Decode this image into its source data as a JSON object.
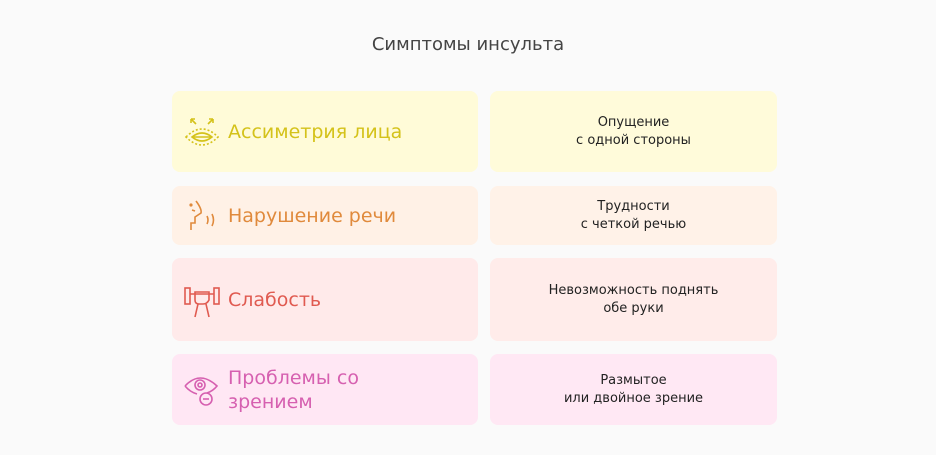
{
  "title": "Симптомы инсульта",
  "rows": [
    {
      "symptom": "Ассиметрия лица",
      "description": "Опущение\nс одной стороны",
      "icon": "face-asymmetry-icon",
      "color": "#d4c21a",
      "bg": "#fffbd8",
      "bg_right": "#fffbda"
    },
    {
      "symptom": "Нарушение речи",
      "description": "Трудности\nс четкой речью",
      "icon": "speech-icon",
      "color": "#e08a3c",
      "bg": "#fff1e6",
      "bg_right": "#fff2e8"
    },
    {
      "symptom": "Слабость",
      "description": "Невозможность поднять\nобе руки",
      "icon": "dumbbell-hand-icon",
      "color": "#e05a50",
      "bg": "#ffeaea",
      "bg_right": "#ffecea"
    },
    {
      "symptom": "Проблемы со\nзрением",
      "description": "Размытое\nили двойное зрение",
      "icon": "eye-minus-icon",
      "color": "#d660b0",
      "bg": "#ffe7f4",
      "bg_right": "#ffe8f4"
    }
  ]
}
